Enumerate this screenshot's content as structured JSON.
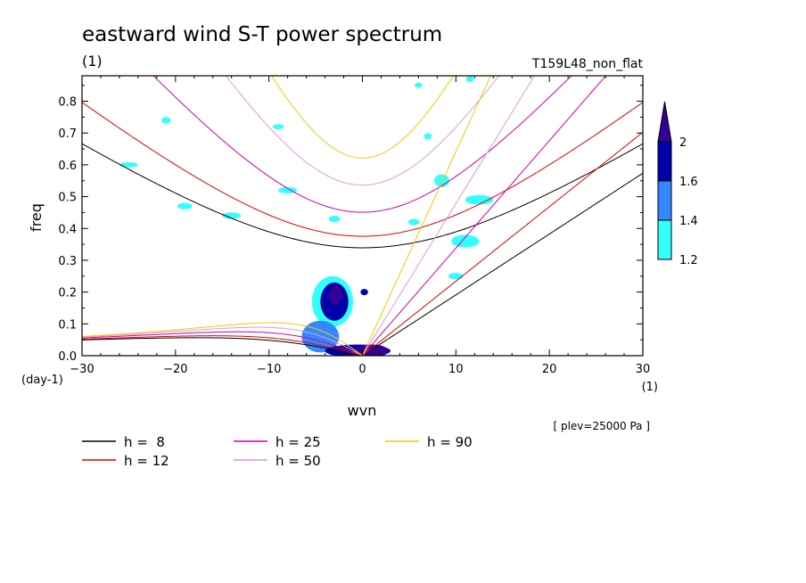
{
  "chart_data": {
    "type": "contour",
    "title": "eastward wind S-T power spectrum",
    "units_label": "(1)",
    "run_label": "T159L48_non_flat",
    "xlabel": "wvn",
    "ylabel": "freq",
    "x_unit": "(1)",
    "y_unit": "(day-1)",
    "level_note": "[ plev=25000 Pa ]",
    "xlim": [
      -30,
      30
    ],
    "ylim": [
      0,
      0.88
    ],
    "xticks": [
      -30,
      -20,
      -10,
      0,
      10,
      20,
      30
    ],
    "yticks": [
      0,
      0.1,
      0.2,
      0.3,
      0.4,
      0.5,
      0.6,
      0.7,
      0.8
    ],
    "colorbar": {
      "levels": [
        1.2,
        1.4,
        1.6,
        2
      ],
      "colors": [
        "#33ffff",
        "#3388ff",
        "#0000aa",
        "#330099"
      ]
    },
    "dispersion_curves": [
      {
        "h": 8,
        "label": "h =  8",
        "color": "#000000"
      },
      {
        "h": 12,
        "label": "h = 12",
        "color": "#dd0000"
      },
      {
        "h": 25,
        "label": "h = 25",
        "color": "#cc00aa"
      },
      {
        "h": 50,
        "label": "h = 50",
        "color": "#dd99dd"
      },
      {
        "h": 90,
        "label": "h = 90",
        "color": "#eecc00"
      }
    ],
    "shaded_regions": [
      {
        "x": -3.2,
        "y": 0.17,
        "rx": 2.2,
        "ry": 0.08,
        "level": 1.2
      },
      {
        "x": -3.0,
        "y": 0.17,
        "rx": 1.5,
        "ry": 0.06,
        "level": 1.6
      },
      {
        "x": -2.9,
        "y": 0.19,
        "rx": 0.7,
        "ry": 0.03,
        "level": 2
      },
      {
        "x": -4.5,
        "y": 0.06,
        "rx": 2.0,
        "ry": 0.05,
        "level": 1.4
      },
      {
        "x": -0.5,
        "y": 0.015,
        "rx": 3.5,
        "ry": 0.02,
        "level": 1.6
      },
      {
        "x": 1.0,
        "y": 0.015,
        "rx": 1.8,
        "ry": 0.02,
        "level": 2
      },
      {
        "x": 0.2,
        "y": 0.2,
        "rx": 0.4,
        "ry": 0.01,
        "level": 1.6
      },
      {
        "x": 11.0,
        "y": 0.36,
        "rx": 1.5,
        "ry": 0.02,
        "level": 1.2
      },
      {
        "x": 8.5,
        "y": 0.55,
        "rx": 0.8,
        "ry": 0.02,
        "level": 1.2
      },
      {
        "x": 12.5,
        "y": 0.49,
        "rx": 1.5,
        "ry": 0.015,
        "level": 1.2
      },
      {
        "x": 10.0,
        "y": 0.25,
        "rx": 0.8,
        "ry": 0.01,
        "level": 1.2
      },
      {
        "x": -14.0,
        "y": 0.44,
        "rx": 1.0,
        "ry": 0.01,
        "level": 1.2
      },
      {
        "x": -8.0,
        "y": 0.52,
        "rx": 1.0,
        "ry": 0.01,
        "level": 1.2
      },
      {
        "x": -25.0,
        "y": 0.6,
        "rx": 1.0,
        "ry": 0.008,
        "level": 1.2
      },
      {
        "x": -19.0,
        "y": 0.47,
        "rx": 0.8,
        "ry": 0.01,
        "level": 1.2
      },
      {
        "x": -3.0,
        "y": 0.43,
        "rx": 0.6,
        "ry": 0.01,
        "level": 1.2
      },
      {
        "x": -9.0,
        "y": 0.72,
        "rx": 0.6,
        "ry": 0.008,
        "level": 1.2
      },
      {
        "x": 5.5,
        "y": 0.42,
        "rx": 0.6,
        "ry": 0.01,
        "level": 1.2
      },
      {
        "x": 7.0,
        "y": 0.69,
        "rx": 0.4,
        "ry": 0.01,
        "level": 1.2
      },
      {
        "x": 11.5,
        "y": 0.87,
        "rx": 0.4,
        "ry": 0.01,
        "level": 1.2
      },
      {
        "x": -21.0,
        "y": 0.74,
        "rx": 0.5,
        "ry": 0.01,
        "level": 1.2
      },
      {
        "x": 6.0,
        "y": 0.85,
        "rx": 0.4,
        "ry": 0.008,
        "level": 1.2
      }
    ]
  }
}
